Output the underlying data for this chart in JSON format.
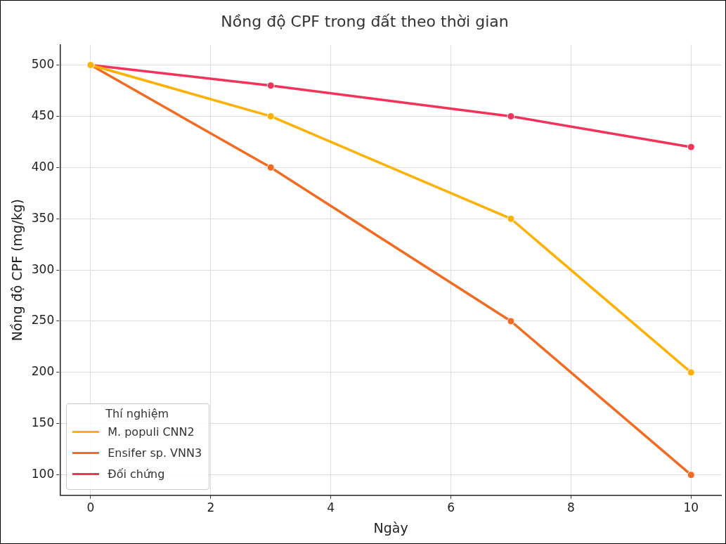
{
  "chart_data": {
    "type": "line",
    "title": "Nồng độ CPF trong đất theo thời gian",
    "xlabel": "Ngày",
    "ylabel": "Nồng độ CPF (mg/kg)",
    "legend_title": "Thí nghiệm",
    "x": [
      0,
      3,
      7,
      10
    ],
    "series": [
      {
        "name": "M. populi CNN2",
        "color": "#ffb000",
        "values": [
          500,
          450,
          350,
          200
        ]
      },
      {
        "name": "Ensifer sp. VNN3",
        "color": "#f26b21",
        "values": [
          500,
          400,
          250,
          100
        ]
      },
      {
        "name": "Đối chứng",
        "color": "#f5325a",
        "values": [
          500,
          480,
          450,
          420
        ]
      }
    ],
    "xlim": [
      -0.5,
      10.5
    ],
    "xticks": [
      0,
      2,
      4,
      6,
      8,
      10
    ],
    "ylim": [
      80,
      520
    ],
    "yticks": [
      100,
      150,
      200,
      250,
      300,
      350,
      400,
      450,
      500
    ],
    "grid": true,
    "legend": "bottom left",
    "marker": "circle",
    "line_style": "solid"
  }
}
